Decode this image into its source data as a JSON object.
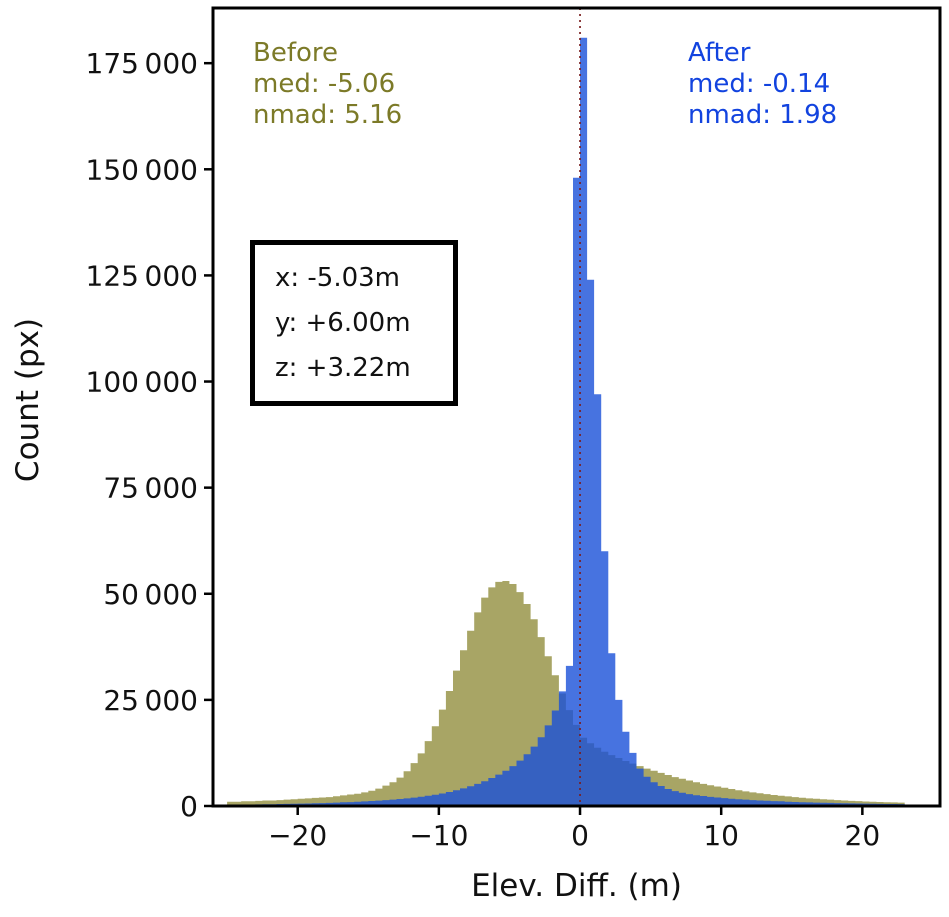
{
  "chart_data": {
    "type": "bar",
    "subtype": "overlaid-histograms",
    "title": "",
    "xlabel": "Elev. Diff. (m)",
    "ylabel": "Count (px)",
    "xlim": [
      -26,
      25.5
    ],
    "ylim": [
      0,
      188000
    ],
    "bin_start": -25.0,
    "bin_width": 0.5,
    "grid": "off",
    "x_ticks": {
      "values": [
        -20,
        -10,
        0,
        10,
        20
      ],
      "labels": [
        "−20",
        "−10",
        "0",
        "10",
        "20"
      ]
    },
    "y_ticks": {
      "values": [
        0,
        25000,
        50000,
        75000,
        100000,
        125000,
        150000,
        175000
      ],
      "labels": [
        "0",
        "25 000",
        "50 000",
        "75 000",
        "100 000",
        "125 000",
        "150 000",
        "175 000"
      ]
    },
    "vline": {
      "x": 0,
      "color": "#7a1f1f",
      "style": "dotted"
    },
    "series": [
      {
        "name": "Before",
        "color": "#a8a565",
        "alpha": 1.0,
        "median": -5.06,
        "nmad": 5.16,
        "values": [
          1000,
          1000,
          1100,
          1100,
          1200,
          1300,
          1300,
          1400,
          1500,
          1600,
          1700,
          1800,
          1900,
          2000,
          2100,
          2300,
          2500,
          2700,
          2900,
          3200,
          3600,
          4100,
          4800,
          5600,
          6700,
          8200,
          10100,
          12400,
          15300,
          18800,
          22700,
          27100,
          31900,
          36700,
          41300,
          45600,
          49100,
          51500,
          52800,
          53000,
          52300,
          50400,
          47600,
          44000,
          39800,
          35300,
          30800,
          26500,
          22600,
          19100,
          16100,
          14800,
          13700,
          12800,
          12000,
          11300,
          10600,
          10000,
          9400,
          8800,
          8300,
          7800,
          7300,
          6800,
          6400,
          6000,
          5600,
          5200,
          4900,
          4600,
          4300,
          4000,
          3700,
          3450,
          3200,
          3000,
          2800,
          2600,
          2400,
          2250,
          2100,
          1950,
          1800,
          1700,
          1600,
          1500,
          1400,
          1300,
          1200,
          1150,
          1050,
          1000,
          950,
          900,
          850,
          800
        ]
      },
      {
        "name": "After",
        "color": "#1950d8",
        "alpha": 0.8,
        "median": -0.14,
        "nmad": 1.98,
        "values": [
          300,
          320,
          340,
          360,
          380,
          400,
          430,
          460,
          490,
          520,
          560,
          600,
          640,
          690,
          740,
          800,
          860,
          930,
          1000,
          1080,
          1170,
          1270,
          1380,
          1500,
          1640,
          1800,
          1980,
          2180,
          2400,
          2650,
          2950,
          3300,
          3700,
          4150,
          4650,
          5200,
          5850,
          6600,
          7400,
          8300,
          9400,
          10700,
          12200,
          14000,
          16200,
          19000,
          22500,
          27000,
          33000,
          148000,
          181000,
          124000,
          97000,
          60000,
          36000,
          25000,
          17500,
          12500,
          8800,
          6900,
          5600,
          4700,
          4000,
          3500,
          3100,
          2800,
          2550,
          2350,
          2150,
          2000,
          1850,
          1700,
          1600,
          1500,
          1400,
          1300,
          1250,
          1150,
          1100,
          1000,
          950,
          900,
          850,
          800,
          760,
          720,
          680,
          650,
          620,
          590,
          560,
          530,
          500,
          480,
          460,
          440
        ]
      }
    ],
    "annotations": {
      "before": {
        "title": "Before",
        "med": "med: -5.06",
        "nmad": "nmad: 5.16",
        "color": "#7c7a28"
      },
      "after": {
        "title": "After",
        "med": "med: -0.14",
        "nmad": "nmad: 1.98",
        "color": "#1243df"
      },
      "shift_box": {
        "x": "x: -5.03m",
        "y": "y: +6.00m",
        "z": "z: +3.22m"
      }
    }
  }
}
